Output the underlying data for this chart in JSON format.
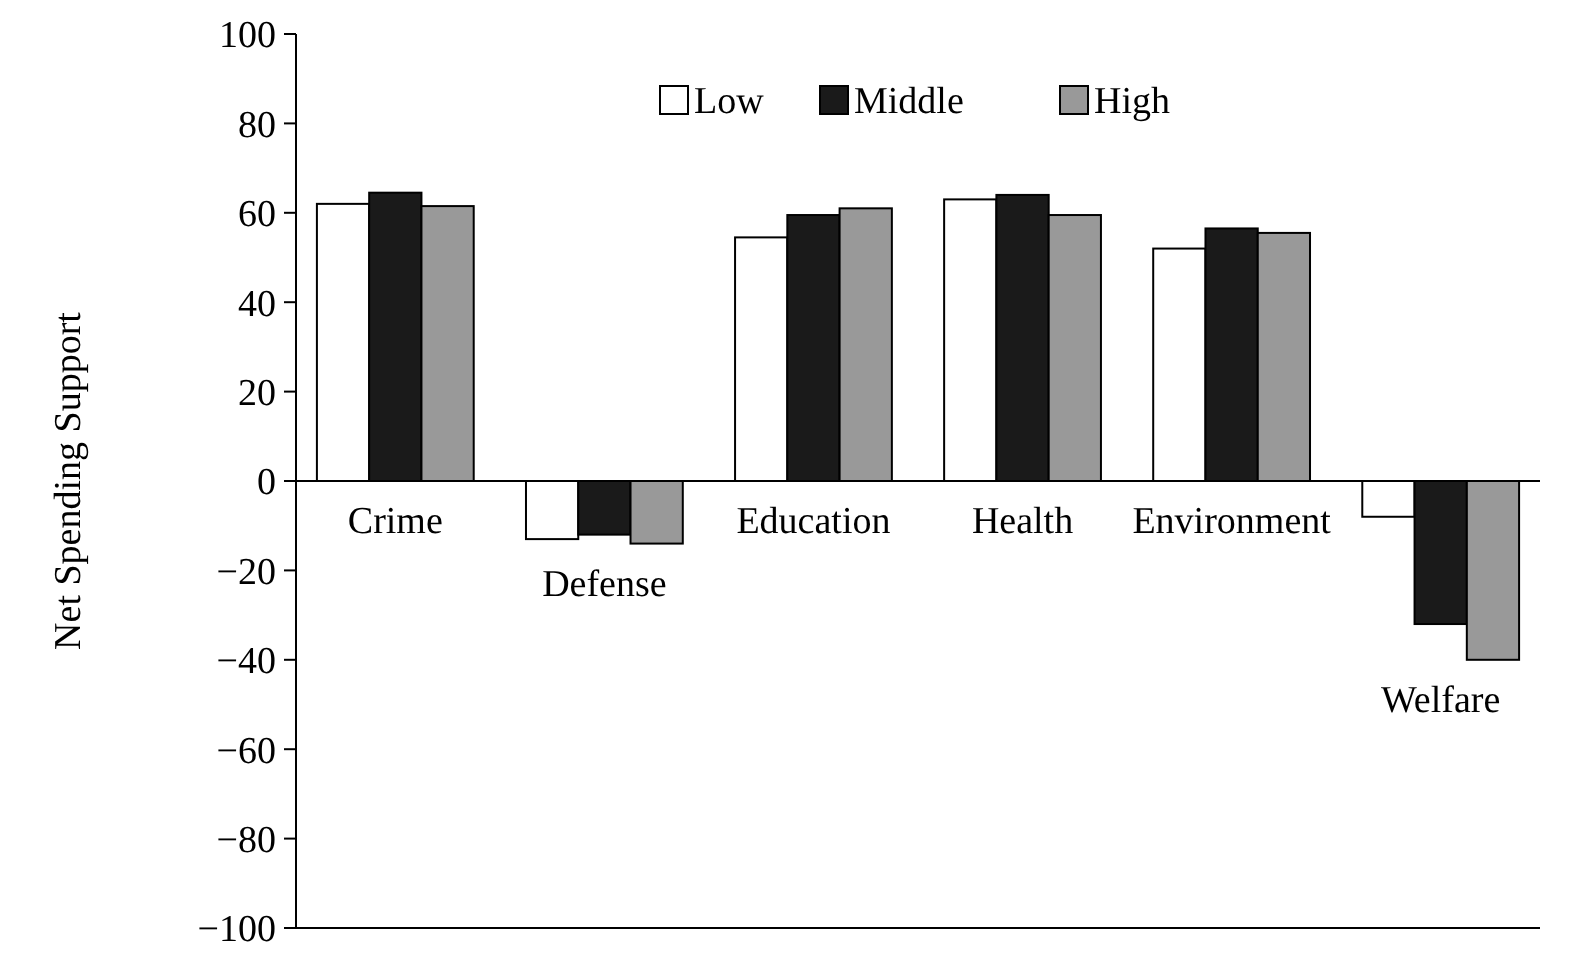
{
  "chart_data": {
    "type": "bar",
    "ylabel": "Net Spending Support",
    "categories": [
      "Crime",
      "Defense",
      "Education",
      "Health",
      "Environment",
      "Welfare"
    ],
    "series": [
      {
        "name": "Low",
        "color": "#ffffff",
        "values": [
          62,
          -13,
          54.5,
          63,
          52,
          -8
        ]
      },
      {
        "name": "Middle",
        "color": "#1a1a1a",
        "values": [
          64.5,
          -12,
          59.5,
          64,
          56.5,
          -32
        ]
      },
      {
        "name": "High",
        "color": "#999999",
        "values": [
          61.5,
          -14,
          61,
          59.5,
          55.5,
          -40
        ]
      }
    ],
    "ylim": [
      -100,
      100
    ],
    "yticks": [
      {
        "value": -100,
        "label": "−100"
      },
      {
        "value": -80,
        "label": "−80"
      },
      {
        "value": -60,
        "label": "−60"
      },
      {
        "value": -40,
        "label": "−40"
      },
      {
        "value": -20,
        "label": "−20"
      },
      0,
      20,
      40,
      60,
      80,
      100
    ],
    "legend": "top",
    "grid": false
  }
}
